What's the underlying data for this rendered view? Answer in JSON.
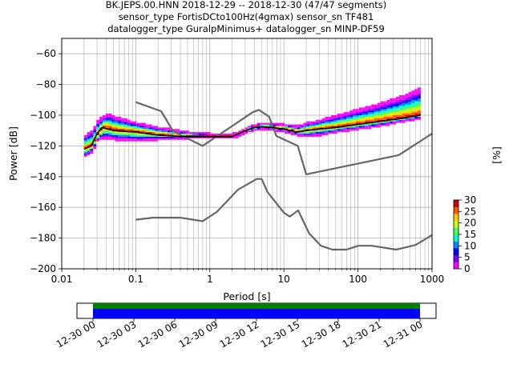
{
  "title_lines": [
    "BK.JEPS.00.HNN   2018-12-29 -- 2018-12-30  (47/47 segments)",
    "sensor_type FortisDCto100Hz(4gmax) sensor_sn TF481",
    "datalogger_type GuralpMinimus+ datalogger_sn MINP-DF59"
  ],
  "colors": {
    "model_line": "#666666",
    "mean_line": "#000000",
    "cbar_colors": [
      "#ffffff",
      "#ff00ff",
      "#7a00ff",
      "#0000ff",
      "#0088ff",
      "#00ffcc",
      "#44ff66",
      "#ccff00",
      "#ffcc00",
      "#ff5500",
      "#cc0000"
    ],
    "timebar_green": "#008000",
    "timebar_blue": "#0000ff"
  },
  "chart_data": [
    {
      "type": "heatmap",
      "xlabel": "Period [s]",
      "ylabel": "Power [dB]",
      "x_scale": "log",
      "xlim": [
        0.01,
        1000
      ],
      "ylim": [
        -200,
        -50
      ],
      "x_ticks": [
        0.01,
        0.1,
        1,
        10,
        100,
        1000
      ],
      "x_tick_labels": [
        "0.01",
        "0.1",
        "1",
        "10",
        "100",
        "1000"
      ],
      "y_ticks": [
        -200,
        -180,
        -160,
        -140,
        -120,
        -100,
        -80,
        -60
      ],
      "y_tick_labels": [
        "−200",
        "−180",
        "−160",
        "−140",
        "−120",
        "−100",
        "−80",
        "−60"
      ],
      "grid": true,
      "colorbar": {
        "label": "[%]",
        "range": [
          0,
          30
        ],
        "ticks": [
          0,
          5,
          10,
          15,
          20,
          25,
          30
        ],
        "tick_labels": [
          "0",
          "5",
          "10",
          "15",
          "20",
          "25",
          "30"
        ]
      },
      "noise_model_high": {
        "x": [
          0.1,
          0.22,
          0.32,
          0.8,
          3.8,
          4.6,
          6.3,
          7.9,
          15.4,
          20,
          354.8,
          1000
        ],
        "y": [
          -91.5,
          -97.4,
          -110.5,
          -120,
          -98,
          -96.5,
          -101,
          -113.5,
          -120,
          -138.5,
          -126,
          -112
        ]
      },
      "noise_model_low": {
        "x": [
          0.1,
          0.17,
          0.4,
          0.8,
          1.24,
          2.4,
          4.3,
          5.0,
          6.0,
          10,
          12,
          15.6,
          21.9,
          31.6,
          45,
          70,
          101,
          154,
          328,
          600,
          1000
        ],
        "y": [
          -168,
          -166.7,
          -166.7,
          -169,
          -163,
          -148.5,
          -141.5,
          -141.5,
          -150,
          -163.5,
          -166,
          -162,
          -177,
          -185,
          -187.5,
          -187.5,
          -185,
          -185,
          -187.5,
          -184.5,
          -178
        ]
      },
      "mean_curve": {
        "x": [
          0.02,
          0.025,
          0.03,
          0.035,
          0.05,
          0.1,
          0.2,
          0.5,
          1,
          2,
          3,
          4,
          5,
          7,
          10,
          15,
          20,
          30,
          50,
          100,
          200,
          400,
          700
        ],
        "y": [
          -122,
          -120,
          -112,
          -108,
          -110,
          -111,
          -113,
          -114,
          -114,
          -114,
          -110,
          -108,
          -107.5,
          -108,
          -109,
          -111,
          -110,
          -109,
          -108,
          -106,
          -104,
          -102,
          -100
        ]
      },
      "psd_spread": {
        "x": [
          0.02,
          0.025,
          0.03,
          0.04,
          0.05,
          0.1,
          0.2,
          0.5,
          1,
          2,
          3,
          5,
          10,
          15,
          20,
          30,
          50,
          100,
          200,
          400,
          700
        ],
        "upper": [
          -114,
          -111,
          -104,
          -100,
          -102,
          -106,
          -109,
          -112,
          -113,
          -113,
          -109,
          -106,
          -107,
          -108,
          -106,
          -104,
          -101,
          -97,
          -93,
          -88,
          -83
        ],
        "lower": [
          -127,
          -124,
          -116,
          -115,
          -116,
          -117,
          -116,
          -115,
          -115,
          -115,
          -111,
          -109,
          -111,
          -113,
          -114,
          -113,
          -111,
          -109,
          -107,
          -104,
          -102
        ]
      }
    }
  ],
  "timebar": {
    "tick_labels": [
      "12-30 00",
      "12-30 03",
      "12-30 06",
      "12-30 09",
      "12-30 12",
      "12-30 15",
      "12-30 18",
      "12-30 21",
      "12-31 00"
    ]
  }
}
